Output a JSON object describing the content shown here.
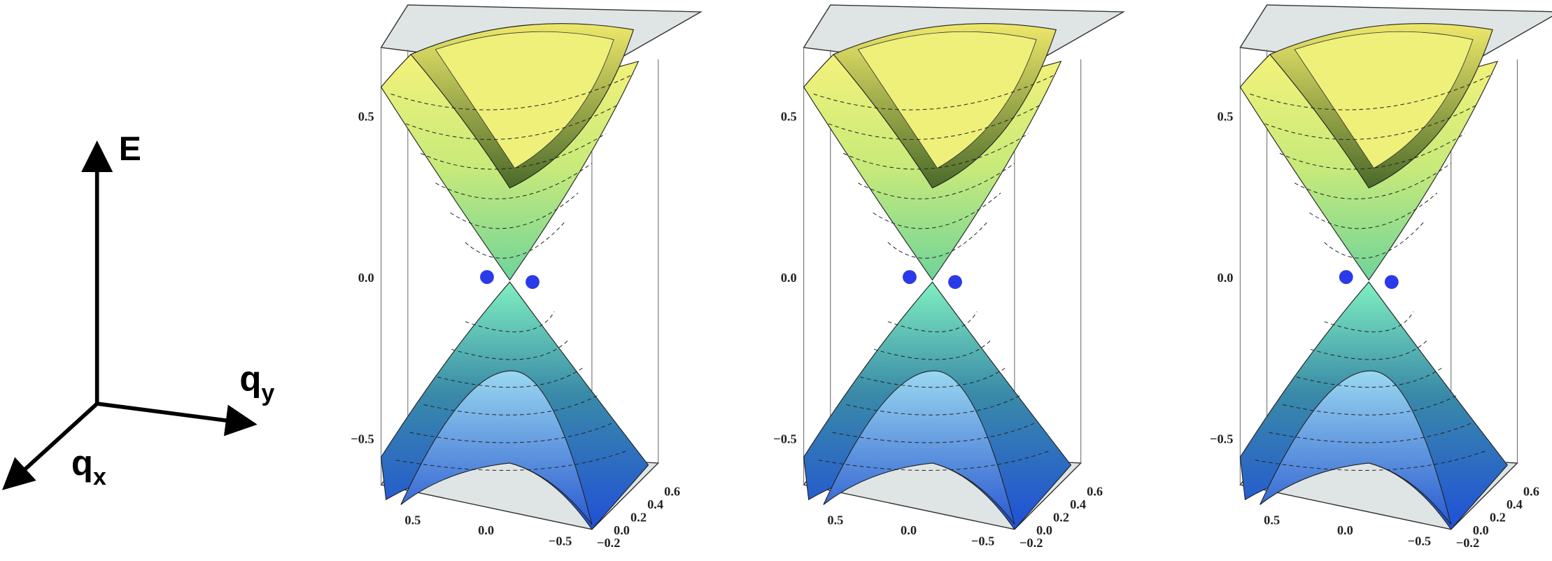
{
  "axes": {
    "e": "E",
    "qy": {
      "base": "q",
      "sub": "y"
    },
    "qx": {
      "base": "q",
      "sub": "x"
    }
  },
  "panels": [
    {
      "e_ticks": [
        "0.5",
        "0.0",
        "−0.5"
      ],
      "x_ticks": [
        "0.5",
        "0.0",
        "−0.5"
      ],
      "y_ticks": [
        "−0.2",
        "0.0",
        "0.2",
        "0.4",
        "0.6"
      ]
    },
    {
      "e_ticks": [
        "0.5",
        "0.0",
        "−0.5"
      ],
      "x_ticks": [
        "0.5",
        "0.0",
        "−0.5"
      ],
      "y_ticks": [
        "−0.2",
        "0.0",
        "0.2",
        "0.4",
        "0.6"
      ]
    },
    {
      "e_ticks": [
        "0.5",
        "0.0",
        "−0.5"
      ],
      "x_ticks": [
        "0.5",
        "0.0",
        "−0.5"
      ],
      "y_ticks": [
        "−0.2",
        "0.0",
        "0.2",
        "0.4",
        "0.6"
      ]
    }
  ]
}
